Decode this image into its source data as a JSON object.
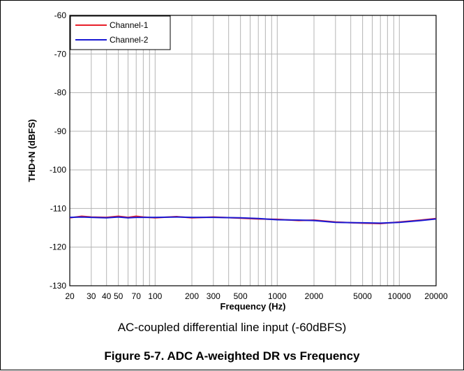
{
  "figure": {
    "subtitle": "AC-coupled differential line input (-60dBFS)",
    "caption": "Figure 5-7. ADC A-weighted DR vs Frequency"
  },
  "chart_data": {
    "type": "line",
    "xscale": "log",
    "xlabel": "Frequency (Hz)",
    "ylabel": "THD+N (dBFS)",
    "xlim": [
      20,
      20000
    ],
    "ylim": [
      -130,
      -60
    ],
    "xticks": [
      20,
      30,
      40,
      50,
      70,
      100,
      200,
      300,
      500,
      1000,
      2000,
      5000,
      10000,
      20000
    ],
    "xtick_labels": [
      "20",
      "30",
      "40",
      "50",
      "70",
      "100",
      "200",
      "300",
      "500",
      "1000",
      "2000",
      "5000",
      "10000",
      "20000"
    ],
    "yticks": [
      -60,
      -70,
      -80,
      -90,
      -100,
      -110,
      -120,
      -130
    ],
    "ytick_labels": [
      "-60",
      "-70",
      "-80",
      "-90",
      "-100",
      "-110",
      "-120",
      "-130"
    ],
    "grid": true,
    "legend_position": "top-left",
    "series": [
      {
        "name": "Channel-1",
        "color": "#e8202a",
        "x": [
          20,
          25,
          30,
          40,
          50,
          60,
          70,
          80,
          100,
          150,
          200,
          300,
          500,
          700,
          1000,
          1500,
          2000,
          3000,
          5000,
          7000,
          10000,
          15000,
          20000
        ],
        "y": [
          -112.4,
          -112.0,
          -112.2,
          -112.3,
          -112.0,
          -112.3,
          -112.0,
          -112.2,
          -112.4,
          -112.1,
          -112.4,
          -112.2,
          -112.5,
          -112.7,
          -112.8,
          -113.1,
          -113.0,
          -113.5,
          -113.8,
          -113.9,
          -113.5,
          -113.0,
          -112.6
        ]
      },
      {
        "name": "Channel-2",
        "color": "#1a1ad4",
        "x": [
          20,
          25,
          30,
          40,
          50,
          60,
          70,
          80,
          100,
          150,
          200,
          300,
          500,
          700,
          1000,
          1500,
          2000,
          3000,
          5000,
          7000,
          10000,
          15000,
          20000
        ],
        "y": [
          -112.3,
          -112.2,
          -112.3,
          -112.4,
          -112.2,
          -112.4,
          -112.3,
          -112.3,
          -112.3,
          -112.2,
          -112.3,
          -112.3,
          -112.4,
          -112.6,
          -112.9,
          -113.0,
          -113.1,
          -113.6,
          -113.7,
          -113.8,
          -113.6,
          -113.1,
          -112.7
        ]
      }
    ]
  }
}
